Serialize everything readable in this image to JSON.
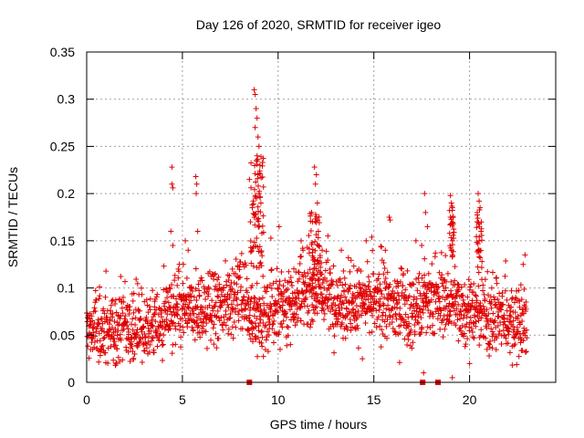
{
  "chart_data": {
    "type": "scatter",
    "title": "Day 126 of 2020, SRMTID for receiver igeo",
    "xlabel": "GPS time / hours",
    "ylabel": "SRMTID / TECUs",
    "xlim": [
      0,
      24.5
    ],
    "ylim": [
      0,
      0.35
    ],
    "x_ticks": [
      0,
      5,
      10,
      15,
      20
    ],
    "x_tick_labels": [
      "0",
      "5",
      "10",
      "15",
      "20"
    ],
    "y_ticks": [
      0,
      0.05,
      0.1,
      0.15,
      0.2,
      0.25,
      0.3,
      0.35
    ],
    "y_tick_labels": [
      "0",
      "0.05",
      "0.1",
      "0.15",
      "0.2",
      "0.25",
      "0.3",
      "0.35"
    ],
    "grid": true,
    "marker": "+",
    "series_color": "#e00000",
    "baseline_envelope": [
      [
        0.0,
        0.055
      ],
      [
        1.0,
        0.055
      ],
      [
        2.0,
        0.06
      ],
      [
        3.0,
        0.055
      ],
      [
        4.0,
        0.065
      ],
      [
        5.0,
        0.075
      ],
      [
        6.0,
        0.075
      ],
      [
        7.0,
        0.08
      ],
      [
        8.0,
        0.095
      ],
      [
        9.0,
        0.06
      ],
      [
        10.0,
        0.08
      ],
      [
        11.0,
        0.09
      ],
      [
        12.0,
        0.1
      ],
      [
        13.0,
        0.085
      ],
      [
        14.0,
        0.08
      ],
      [
        15.0,
        0.085
      ],
      [
        16.0,
        0.08
      ],
      [
        17.0,
        0.075
      ],
      [
        18.0,
        0.085
      ],
      [
        19.0,
        0.085
      ],
      [
        20.0,
        0.075
      ],
      [
        21.0,
        0.07
      ],
      [
        22.0,
        0.065
      ],
      [
        23.0,
        0.06
      ]
    ],
    "peak_points": [
      [
        4.45,
        0.228
      ],
      [
        4.45,
        0.21
      ],
      [
        4.5,
        0.206
      ],
      [
        4.4,
        0.16
      ],
      [
        4.5,
        0.145
      ],
      [
        5.05,
        0.125
      ],
      [
        5.15,
        0.15
      ],
      [
        5.3,
        0.14
      ],
      [
        5.7,
        0.218
      ],
      [
        5.75,
        0.21
      ],
      [
        5.72,
        0.2
      ],
      [
        5.8,
        0.16
      ],
      [
        8.55,
        0.17
      ],
      [
        8.65,
        0.185
      ],
      [
        8.5,
        0.215
      ],
      [
        8.75,
        0.31
      ],
      [
        8.8,
        0.305
      ],
      [
        8.85,
        0.29
      ],
      [
        8.9,
        0.28
      ],
      [
        8.8,
        0.27
      ],
      [
        8.95,
        0.26
      ],
      [
        9.0,
        0.25
      ],
      [
        8.9,
        0.24
      ],
      [
        9.05,
        0.23
      ],
      [
        8.95,
        0.22
      ],
      [
        9.0,
        0.2
      ],
      [
        9.1,
        0.19
      ],
      [
        8.85,
        0.178
      ],
      [
        9.0,
        0.165
      ],
      [
        9.15,
        0.158
      ],
      [
        10.05,
        0.165
      ],
      [
        11.2,
        0.15
      ],
      [
        11.3,
        0.14
      ],
      [
        11.9,
        0.228
      ],
      [
        12.0,
        0.22
      ],
      [
        11.95,
        0.21
      ],
      [
        12.05,
        0.19
      ],
      [
        11.8,
        0.17
      ],
      [
        12.1,
        0.16
      ],
      [
        12.3,
        0.14
      ],
      [
        12.6,
        0.155
      ],
      [
        13.3,
        0.14
      ],
      [
        14.6,
        0.15
      ],
      [
        15.6,
        0.14
      ],
      [
        15.8,
        0.175
      ],
      [
        15.85,
        0.172
      ],
      [
        17.2,
        0.15
      ],
      [
        17.5,
        0.145
      ],
      [
        17.65,
        0.2
      ],
      [
        17.7,
        0.18
      ],
      [
        17.8,
        0.165
      ],
      [
        19.0,
        0.198
      ],
      [
        19.05,
        0.19
      ],
      [
        19.1,
        0.185
      ],
      [
        19.0,
        0.175
      ],
      [
        19.15,
        0.168
      ],
      [
        19.1,
        0.15
      ],
      [
        19.05,
        0.14
      ],
      [
        20.45,
        0.2
      ],
      [
        20.5,
        0.192
      ],
      [
        20.55,
        0.185
      ],
      [
        20.4,
        0.17
      ],
      [
        20.6,
        0.16
      ],
      [
        20.5,
        0.15
      ],
      [
        22.9,
        0.135
      ],
      [
        22.8,
        0.125
      ]
    ],
    "low_points": [
      [
        17.6,
        0.01
      ],
      [
        19.1,
        0.005
      ],
      [
        20.0,
        0.02
      ],
      [
        1.5,
        0.018
      ],
      [
        14.4,
        0.025
      ]
    ],
    "zero_markers": [
      [
        8.5,
        0
      ],
      [
        17.55,
        0
      ],
      [
        18.35,
        0
      ]
    ]
  }
}
